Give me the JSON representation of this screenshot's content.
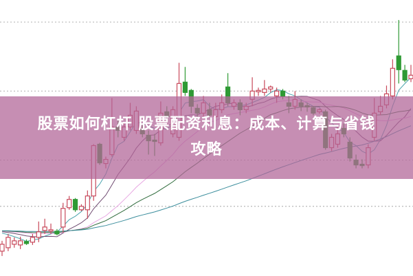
{
  "title_lines": [
    "股票如何杠杆 股票配资利息：成本、计算与省钱",
    "攻略"
  ],
  "colors": {
    "up": "#c8485a",
    "down": "#2f9a34",
    "grid": "#b8b8b8",
    "banner": "#c38ab5",
    "ma": [
      "#4aa3ad",
      "#6e4a70",
      "#e7a6e2",
      "#2f6b3c",
      "#3a8d9c"
    ]
  },
  "chart_data": {
    "type": "candlestick",
    "title": "",
    "xlabel": "",
    "ylabel": "",
    "ylim": [
      0,
      40
    ],
    "grid": true,
    "grid_style": "dotted-horizontal",
    "grid_values": [
      10,
      16.7,
      26.7,
      36.7
    ],
    "moving_average_windows": [
      5,
      10,
      20,
      30,
      60
    ],
    "candles": [
      [
        3.5,
        4.5,
        5.0,
        2.8
      ],
      [
        4.0,
        5.5,
        6.0,
        3.5
      ],
      [
        4.5,
        5.0,
        5.5,
        4.0
      ],
      [
        4.4,
        5.0,
        5.6,
        3.8
      ],
      [
        4.9,
        4.6,
        5.2,
        4.4
      ],
      [
        4.8,
        5.5,
        6.0,
        4.4
      ],
      [
        5.5,
        6.3,
        7.8,
        4.8
      ],
      [
        6.5,
        7.0,
        8.2,
        6.0
      ],
      [
        6.4,
        6.6,
        7.5,
        6.0
      ],
      [
        6.4,
        6.0,
        6.7,
        5.8
      ],
      [
        7.0,
        9.7,
        10.5,
        6.2
      ],
      [
        9.8,
        11.0,
        11.5,
        9.5
      ],
      [
        11.0,
        9.5,
        11.2,
        9.2
      ],
      [
        9.5,
        10.0,
        10.3,
        9.3
      ],
      [
        9.5,
        11.5,
        12.3,
        8.2
      ],
      [
        11.5,
        18.8,
        19.0,
        10.8
      ],
      [
        19.0,
        16.3,
        19.2,
        16.0
      ],
      [
        16.2,
        16.8,
        17.2,
        15.5
      ],
      [
        17.5,
        21.5,
        25.7,
        17.2
      ],
      [
        21.5,
        21.0,
        22.5,
        20.0
      ],
      [
        20.0,
        21.5,
        22.2,
        19.5
      ],
      [
        21.5,
        23.2,
        25.0,
        21.0
      ],
      [
        21.0,
        23.8,
        24.5,
        20.5
      ],
      [
        21.2,
        20.5,
        22.0,
        20.0
      ],
      [
        20.3,
        19.5,
        21.0,
        17.5
      ],
      [
        19.6,
        19.4,
        20.5,
        17.3
      ],
      [
        19.2,
        23.5,
        25.2,
        18.8
      ],
      [
        23.7,
        23.0,
        24.5,
        22.5
      ],
      [
        20.5,
        24.0,
        24.5,
        20.0
      ],
      [
        20.0,
        27.8,
        30.8,
        19.5
      ],
      [
        28.0,
        26.5,
        30.2,
        26.0
      ],
      [
        26.8,
        24.5,
        27.0,
        23.5
      ],
      [
        24.2,
        23.5,
        24.8,
        23.0
      ],
      [
        23.5,
        25.0,
        26.0,
        23.0
      ],
      [
        24.0,
        23.2,
        25.0,
        23.0
      ],
      [
        23.0,
        24.0,
        25.0,
        22.8
      ],
      [
        24.0,
        25.0,
        26.2,
        23.5
      ],
      [
        27.3,
        25.0,
        29.3,
        24.5
      ],
      [
        24.5,
        25.0,
        25.5,
        24.0
      ],
      [
        25.0,
        24.0,
        25.5,
        23.2
      ],
      [
        24.0,
        24.5,
        25.0,
        23.5
      ],
      [
        25.5,
        26.7,
        28.7,
        24.5
      ],
      [
        26.6,
        26.8,
        27.2,
        26.0
      ],
      [
        26.5,
        27.0,
        28.3,
        26.0
      ],
      [
        27.0,
        27.3,
        27.5,
        26.5
      ],
      [
        26.0,
        26.7,
        27.2,
        25.0
      ],
      [
        26.7,
        26.0,
        27.0,
        25.5
      ],
      [
        25.0,
        24.5,
        26.0,
        23.5
      ],
      [
        24.5,
        25.5,
        26.7,
        24.0
      ],
      [
        25.0,
        24.5,
        25.5,
        23.8
      ],
      [
        24.6,
        24.4,
        25.0,
        23.7
      ],
      [
        24.3,
        23.5,
        24.5,
        23.2
      ],
      [
        23.7,
        24.0,
        24.2,
        23.4
      ],
      [
        23.7,
        18.5,
        24.0,
        18.2
      ],
      [
        18.5,
        20.0,
        20.5,
        18.0
      ],
      [
        19.0,
        20.5,
        21.5,
        18.5
      ],
      [
        21.3,
        20.5,
        22.0,
        20.0
      ],
      [
        19.3,
        17.0,
        20.0,
        16.5
      ],
      [
        16.7,
        16.0,
        17.5,
        15.5
      ],
      [
        16.1,
        15.9,
        16.8,
        15.5
      ],
      [
        16.0,
        18.5,
        19.0,
        15.5
      ],
      [
        20.0,
        23.5,
        25.7,
        19.5
      ],
      [
        23.7,
        24.5,
        26.0,
        23.2
      ],
      [
        24.7,
        26.3,
        27.5,
        24.2
      ],
      [
        26.0,
        30.0,
        31.3,
        25.5
      ],
      [
        31.8,
        29.8,
        37.0,
        27.8
      ],
      [
        29.7,
        28.3,
        30.5,
        28.0
      ],
      [
        28.5,
        29.0,
        30.5,
        28.0
      ]
    ],
    "candle_format": [
      "open",
      "close",
      "high",
      "low"
    ]
  }
}
